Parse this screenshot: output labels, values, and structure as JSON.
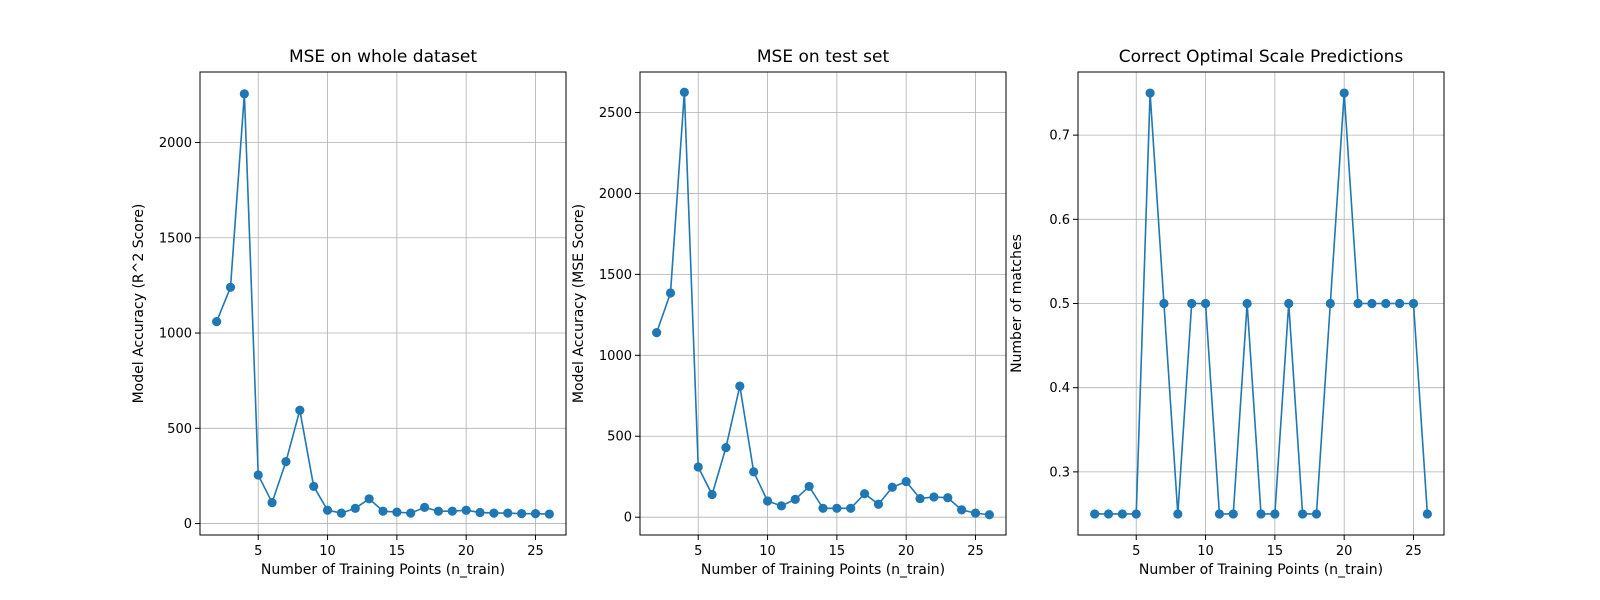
{
  "colors": {
    "series": "#1f77b4",
    "grid": "#b0b0b0",
    "axis": "#000000"
  },
  "chart_data": [
    {
      "type": "line",
      "title": "MSE on whole dataset",
      "xlabel": "Number of Training Points (n_train)",
      "ylabel": "Model Accuracy (R^2 Score)",
      "grid": true,
      "marker": "circle",
      "xlim": [
        0.8,
        27.2
      ],
      "ylim": [
        -60,
        2370
      ],
      "xticks": [
        5,
        10,
        15,
        20,
        25
      ],
      "yticks": [
        0,
        500,
        1000,
        1500,
        2000
      ],
      "series": [
        {
          "x": [
            2,
            3,
            4,
            5,
            6,
            7,
            8,
            9,
            10,
            11,
            12,
            13,
            14,
            15,
            16,
            17,
            18,
            19,
            20,
            21,
            22,
            23,
            24,
            25,
            26
          ],
          "y": [
            1060,
            1240,
            2255,
            255,
            110,
            325,
            595,
            195,
            70,
            55,
            80,
            130,
            65,
            60,
            55,
            85,
            65,
            65,
            70,
            58,
            55,
            55,
            52,
            52,
            50
          ]
        }
      ]
    },
    {
      "type": "line",
      "title": "MSE on test set",
      "xlabel": "Number of Training Points (n_train)",
      "ylabel": "Model Accuracy (MSE Score)",
      "grid": true,
      "marker": "circle",
      "xlim": [
        0.8,
        27.2
      ],
      "ylim": [
        -110,
        2750
      ],
      "xticks": [
        5,
        10,
        15,
        20,
        25
      ],
      "yticks": [
        0,
        500,
        1000,
        1500,
        2000,
        2500
      ],
      "series": [
        {
          "x": [
            2,
            3,
            4,
            5,
            6,
            7,
            8,
            9,
            10,
            11,
            12,
            13,
            14,
            15,
            16,
            17,
            18,
            19,
            20,
            21,
            22,
            23,
            24,
            25,
            26
          ],
          "y": [
            1140,
            1385,
            2625,
            310,
            140,
            430,
            810,
            280,
            100,
            70,
            110,
            190,
            55,
            55,
            55,
            145,
            80,
            185,
            220,
            115,
            125,
            120,
            45,
            25,
            15
          ]
        }
      ]
    },
    {
      "type": "line",
      "title": "Correct Optimal Scale Predictions",
      "xlabel": "Number of Training Points (n_train)",
      "ylabel": "Number of matches",
      "grid": true,
      "marker": "circle",
      "xlim": [
        0.8,
        27.2
      ],
      "ylim": [
        0.225,
        0.775
      ],
      "xticks": [
        5,
        10,
        15,
        20,
        25
      ],
      "yticks": [
        0.3,
        0.4,
        0.5,
        0.6,
        0.7
      ],
      "series": [
        {
          "x": [
            2,
            3,
            4,
            5,
            6,
            7,
            8,
            9,
            10,
            11,
            12,
            13,
            14,
            15,
            16,
            17,
            18,
            19,
            20,
            21,
            22,
            23,
            24,
            25,
            26
          ],
          "y": [
            0.25,
            0.25,
            0.25,
            0.25,
            0.75,
            0.5,
            0.25,
            0.5,
            0.5,
            0.25,
            0.25,
            0.5,
            0.25,
            0.25,
            0.5,
            0.25,
            0.25,
            0.5,
            0.75,
            0.5,
            0.5,
            0.5,
            0.5,
            0.5,
            0.25
          ]
        }
      ]
    }
  ]
}
